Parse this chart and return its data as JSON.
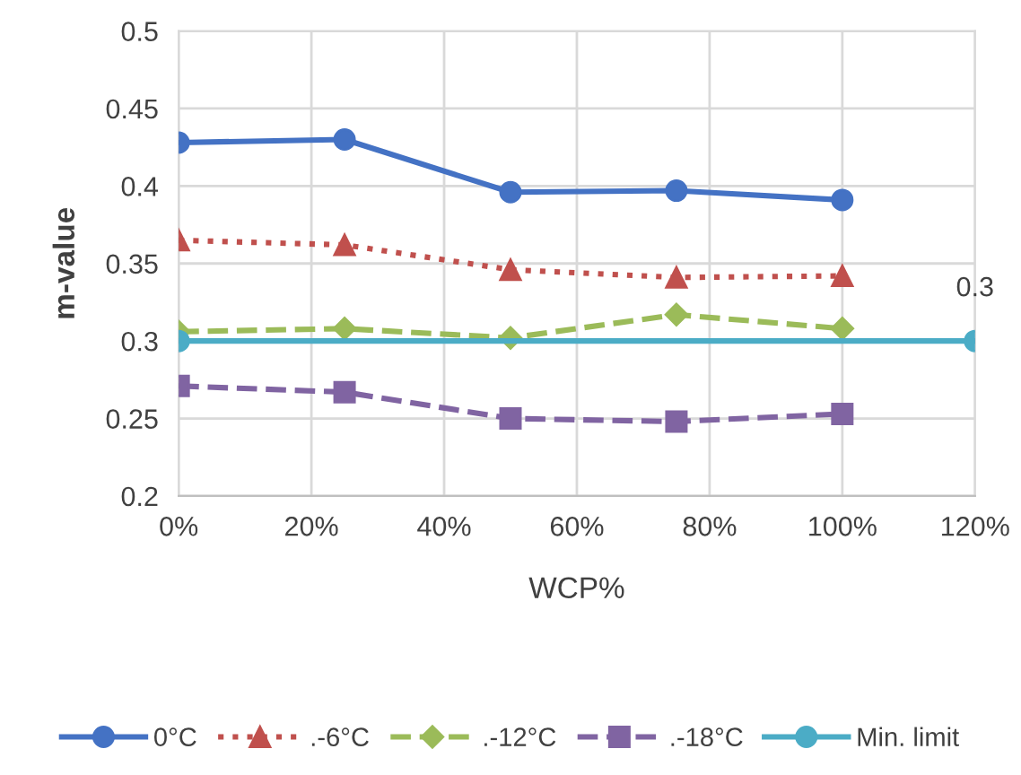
{
  "chart_data": {
    "type": "line",
    "xlabel": "WCP%",
    "ylabel": "m-value",
    "xlim": [
      0,
      120
    ],
    "xticks": [
      {
        "value": 0,
        "label": "0%"
      },
      {
        "value": 20,
        "label": "20%"
      },
      {
        "value": 40,
        "label": "40%"
      },
      {
        "value": 60,
        "label": "60%"
      },
      {
        "value": 80,
        "label": "80%"
      },
      {
        "value": 100,
        "label": "100%"
      },
      {
        "value": 120,
        "label": "120%"
      }
    ],
    "ylim": [
      0.2,
      0.5
    ],
    "yticks": [
      0.2,
      0.25,
      0.3,
      0.35,
      0.4,
      0.45,
      0.5
    ],
    "grid": true,
    "legend": "bottom",
    "x": [
      0,
      25,
      50,
      75,
      100
    ],
    "series": [
      {
        "name": "0°C",
        "color": "#4472c4",
        "marker": "circle",
        "line_style": "solid",
        "values": [
          0.428,
          0.43,
          0.396,
          0.397,
          0.391
        ]
      },
      {
        "name": ".-6°C",
        "color": "#c0504d",
        "marker": "triangle",
        "line_style": "dotted",
        "values": [
          0.365,
          0.362,
          0.346,
          0.341,
          0.342
        ]
      },
      {
        "name": ".-12°C",
        "color": "#9bbb59",
        "marker": "diamond",
        "line_style": "dashed",
        "values": [
          0.306,
          0.308,
          0.302,
          0.317,
          0.308
        ]
      },
      {
        "name": ".-18°C",
        "color": "#8064a2",
        "marker": "square",
        "line_style": "dashed",
        "values": [
          0.271,
          0.267,
          0.25,
          0.248,
          0.253
        ]
      },
      {
        "name": "Min. limit",
        "color": "#4bacc6",
        "marker": "circle",
        "line_style": "solid",
        "x": [
          0,
          120
        ],
        "values": [
          0.3,
          0.3
        ],
        "value_labels": [
          null,
          "0.3"
        ]
      }
    ]
  }
}
